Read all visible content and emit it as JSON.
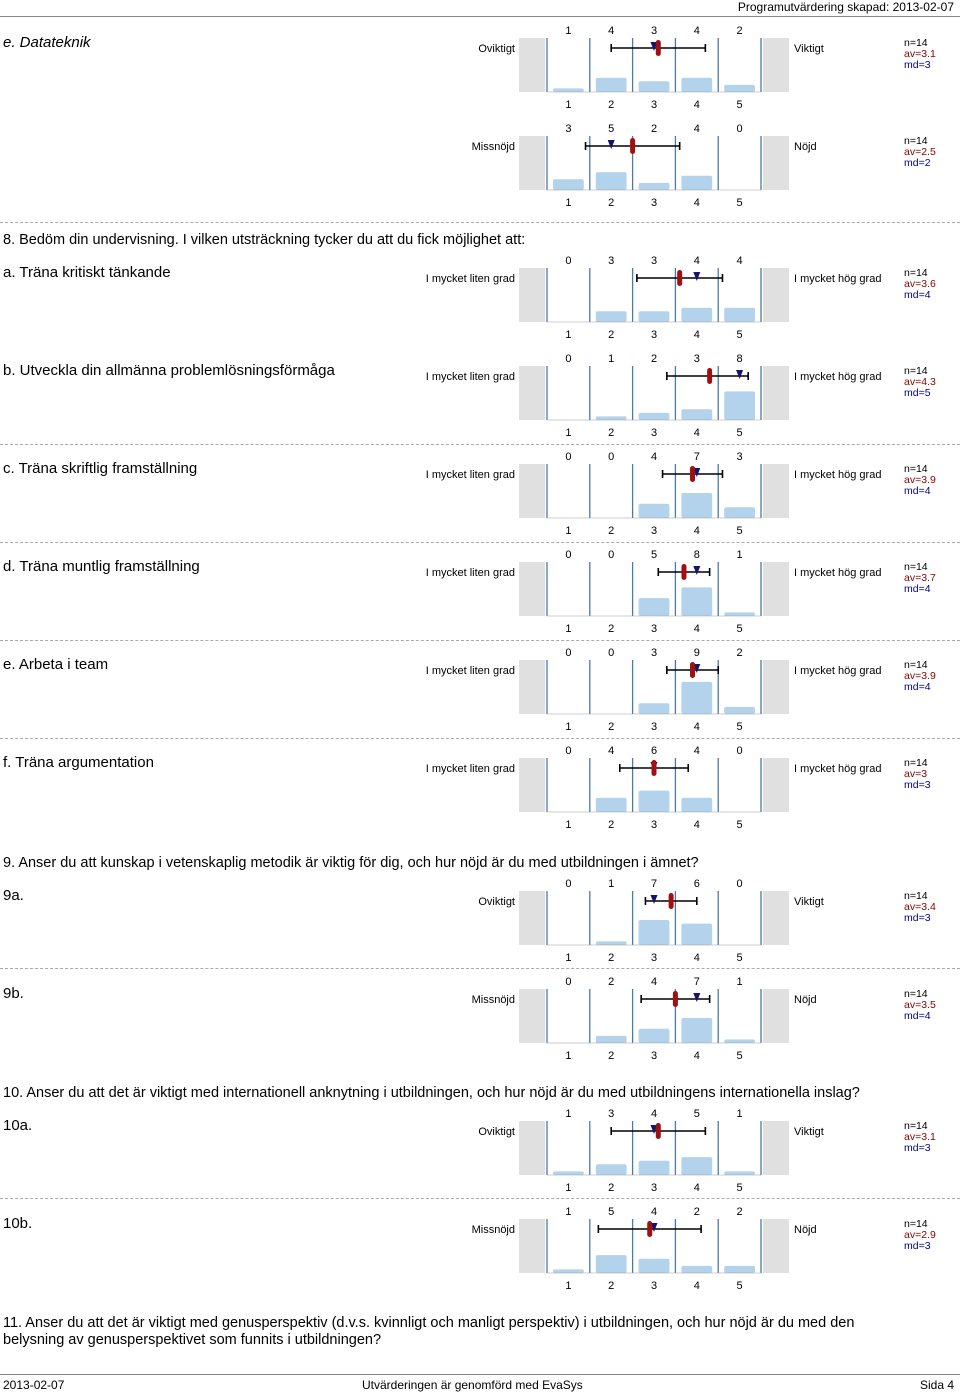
{
  "header": {
    "text": "Programutvärdering skapad: 2013-02-07"
  },
  "sections": {
    "s8": "8. Bedöm din undervisning. I vilken utsträckning tycker du att du fick möjlighet att:",
    "s9": "9. Anser du att kunskap i vetenskaplig metodik är viktig för dig, och hur nöjd är du med utbildningen i ämnet?",
    "s10": "10. Anser du att det är viktigt med internationell anknytning i utbildningen, och hur nöjd är du med utbildningens internationella inslag?",
    "s11a": "11. Anser du att det är viktigt med genusperspektiv (d.v.s. kvinnligt och manligt perspektiv) i utbildningen, och hur nöjd är du med den",
    "s11b": "belysning av genusperspektivet som funnits i utbildningen?"
  },
  "scale_labels": [
    "1",
    "2",
    "3",
    "4",
    "5"
  ],
  "questions": [
    {
      "label": "e. Datateknik",
      "left": "Oviktigt",
      "right": "Viktigt",
      "counts": [
        1,
        4,
        3,
        4,
        2
      ],
      "n": "n=14",
      "av": "av=3.1",
      "md": "md=3",
      "av_value": 3.1,
      "md_value": 3,
      "sd_low": 2.0,
      "sd_high": 4.2
    },
    {
      "label": "",
      "left": "Missnöjd",
      "right": "Nöjd",
      "counts": [
        3,
        5,
        2,
        4,
        0
      ],
      "n": "n=14",
      "av": "av=2.5",
      "md": "md=2",
      "av_value": 2.5,
      "md_value": 2,
      "sd_low": 1.4,
      "sd_high": 3.6
    },
    {
      "label": "a. Träna kritiskt tänkande",
      "left": "I mycket liten grad",
      "right": "I mycket hög grad",
      "counts": [
        0,
        3,
        3,
        4,
        4
      ],
      "n": "n=14",
      "av": "av=3.6",
      "md": "md=4",
      "av_value": 3.6,
      "md_value": 4,
      "sd_low": 2.6,
      "sd_high": 4.6
    },
    {
      "label": "b. Utveckla din allmänna problemlösningsförmåga",
      "left": "I mycket liten grad",
      "right": "I mycket hög grad",
      "counts": [
        0,
        1,
        2,
        3,
        8
      ],
      "n": "n=14",
      "av": "av=4.3",
      "md": "md=5",
      "av_value": 4.3,
      "md_value": 5,
      "sd_low": 3.3,
      "sd_high": 5.2
    },
    {
      "label": "c. Träna skriftlig framställning",
      "left": "I mycket liten grad",
      "right": "I mycket hög grad",
      "counts": [
        0,
        0,
        4,
        7,
        3
      ],
      "n": "n=14",
      "av": "av=3.9",
      "md": "md=4",
      "av_value": 3.9,
      "md_value": 4,
      "sd_low": 3.2,
      "sd_high": 4.6
    },
    {
      "label": "d. Träna muntlig framställning",
      "left": "I mycket liten grad",
      "right": "I mycket hög grad",
      "counts": [
        0,
        0,
        5,
        8,
        1
      ],
      "n": "n=14",
      "av": "av=3.7",
      "md": "md=4",
      "av_value": 3.7,
      "md_value": 4,
      "sd_low": 3.1,
      "sd_high": 4.3
    },
    {
      "label": "e. Arbeta i team",
      "left": "I mycket liten grad",
      "right": "I mycket hög grad",
      "counts": [
        0,
        0,
        3,
        9,
        2
      ],
      "n": "n=14",
      "av": "av=3.9",
      "md": "md=4",
      "av_value": 3.9,
      "md_value": 4,
      "sd_low": 3.3,
      "sd_high": 4.5
    },
    {
      "label": "f. Träna argumentation",
      "left": "I mycket liten grad",
      "right": "I mycket hög grad",
      "counts": [
        0,
        4,
        6,
        4,
        0
      ],
      "n": "n=14",
      "av": "av=3",
      "md": "md=3",
      "av_value": 3.0,
      "md_value": 3,
      "sd_low": 2.2,
      "sd_high": 3.8
    },
    {
      "label": "9a.",
      "left": "Oviktigt",
      "right": "Viktigt",
      "counts": [
        0,
        1,
        7,
        6,
        0
      ],
      "n": "n=14",
      "av": "av=3.4",
      "md": "md=3",
      "av_value": 3.4,
      "md_value": 3,
      "sd_low": 2.8,
      "sd_high": 4.0
    },
    {
      "label": "9b.",
      "left": "Missnöjd",
      "right": "Nöjd",
      "counts": [
        0,
        2,
        4,
        7,
        1
      ],
      "n": "n=14",
      "av": "av=3.5",
      "md": "md=4",
      "av_value": 3.5,
      "md_value": 4,
      "sd_low": 2.7,
      "sd_high": 4.3
    },
    {
      "label": "10a.",
      "left": "Oviktigt",
      "right": "Viktigt",
      "counts": [
        1,
        3,
        4,
        5,
        1
      ],
      "n": "n=14",
      "av": "av=3.1",
      "md": "md=3",
      "av_value": 3.1,
      "md_value": 3,
      "sd_low": 2.0,
      "sd_high": 4.2
    },
    {
      "label": "10b.",
      "left": "Missnöjd",
      "right": "Nöjd",
      "counts": [
        1,
        5,
        4,
        2,
        2
      ],
      "n": "n=14",
      "av": "av=2.9",
      "md": "md=3",
      "av_value": 2.9,
      "md_value": 3,
      "sd_low": 1.7,
      "sd_high": 4.1
    }
  ],
  "footer": {
    "date": "2013-02-07",
    "center": "Utvärderingen är genomförd med EvaSys",
    "page": "Sida 4"
  },
  "colors": {
    "bar": "#b3d2ec",
    "axis": "#4a7aa8",
    "side": "#e0e0e0",
    "mean": "#a01010",
    "median": "#14146e",
    "sd": "#000000"
  }
}
